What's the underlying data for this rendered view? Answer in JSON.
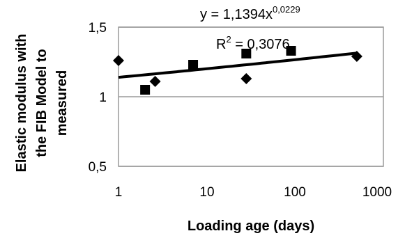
{
  "chart_data": {
    "type": "scatter",
    "xscale": "log",
    "xlim": [
      1,
      1000
    ],
    "ylim": [
      0.5,
      1.5
    ],
    "x_ticks": [
      1,
      10,
      100,
      1000
    ],
    "x_tick_labels": [
      "1",
      "10",
      "100",
      "1000"
    ],
    "y_ticks": [
      0.5,
      1,
      1.5
    ],
    "y_tick_labels": [
      "0,5",
      "1",
      "1,5"
    ],
    "xlabel": "Loading age (days)",
    "ylabel_lines": [
      "Elastic modulus with",
      "the FIB Model to",
      "measured"
    ],
    "grid": "horizontal",
    "series": [
      {
        "marker": "diamond",
        "color": "#000000",
        "points": [
          {
            "x": 1,
            "y": 1.26
          },
          {
            "x": 2.6,
            "y": 1.11
          },
          {
            "x": 28,
            "y": 1.13
          },
          {
            "x": 500,
            "y": 1.29
          }
        ]
      },
      {
        "marker": "square",
        "color": "#000000",
        "points": [
          {
            "x": 2,
            "y": 1.05
          },
          {
            "x": 7,
            "y": 1.23
          },
          {
            "x": 28,
            "y": 1.31
          },
          {
            "x": 90,
            "y": 1.33
          }
        ]
      }
    ],
    "trendline": {
      "type": "power",
      "a": 1.1394,
      "b": 0.0229,
      "equation_text": "y = 1,1394x",
      "exponent_text": "0,0229",
      "r2_prefix": "R",
      "r2_superscript": "2",
      "r2_value_text": " = 0,3076"
    }
  }
}
